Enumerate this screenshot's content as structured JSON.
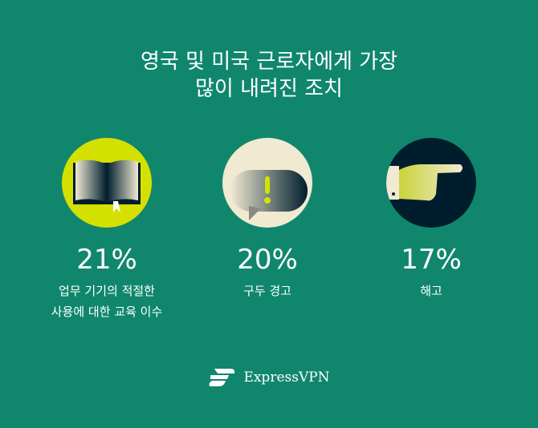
{
  "title_lines": [
    "영국 및 미국 근로자에게 가장",
    "많이 내려진 조치"
  ],
  "items": [
    {
      "icon": "book-icon",
      "color": "#d4e000",
      "percent": "21%",
      "label_lines": [
        "업무 기기의 적절한",
        "사용에 대한 교육 이수"
      ]
    },
    {
      "icon": "warning-speech-bubble-icon",
      "color": "#f0ead2",
      "percent": "20%",
      "label_lines": [
        "구두 경고"
      ]
    },
    {
      "icon": "pointing-hand-icon",
      "color": "#001d2e",
      "percent": "17%",
      "label_lines": [
        "해고"
      ]
    }
  ],
  "brand": "ExpressVPN",
  "colors": {
    "background": "#10876c",
    "accent": "#d4e000"
  }
}
